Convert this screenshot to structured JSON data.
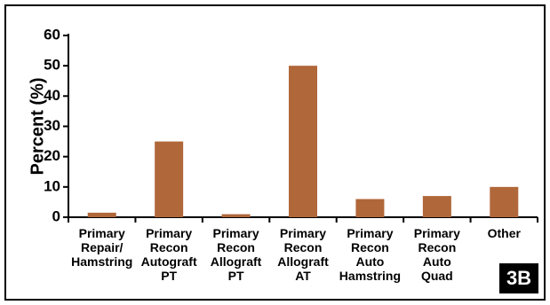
{
  "figure_label": "3B",
  "colors": {
    "bar": "#b0673a",
    "axis": "#000000"
  },
  "chart_data": {
    "type": "bar",
    "ylabel": "Percent (%)",
    "ylim": [
      0,
      60
    ],
    "yticks": [
      0,
      10,
      20,
      30,
      40,
      50,
      60
    ],
    "grid": false,
    "categories": [
      [
        "Primary",
        "Repair/",
        "Hamstring"
      ],
      [
        "Primary",
        "Recon",
        "Autograft",
        "PT"
      ],
      [
        "Primary",
        "Recon",
        "Allograft",
        "PT"
      ],
      [
        "Primary",
        "Recon",
        "Allograft",
        "AT"
      ],
      [
        "Primary",
        "Recon",
        "Auto",
        "Hamstring"
      ],
      [
        "Primary",
        "Recon",
        "Auto",
        "Quad"
      ],
      [
        "Other"
      ]
    ],
    "values": [
      1.5,
      25,
      1,
      50,
      6,
      7,
      10
    ]
  }
}
